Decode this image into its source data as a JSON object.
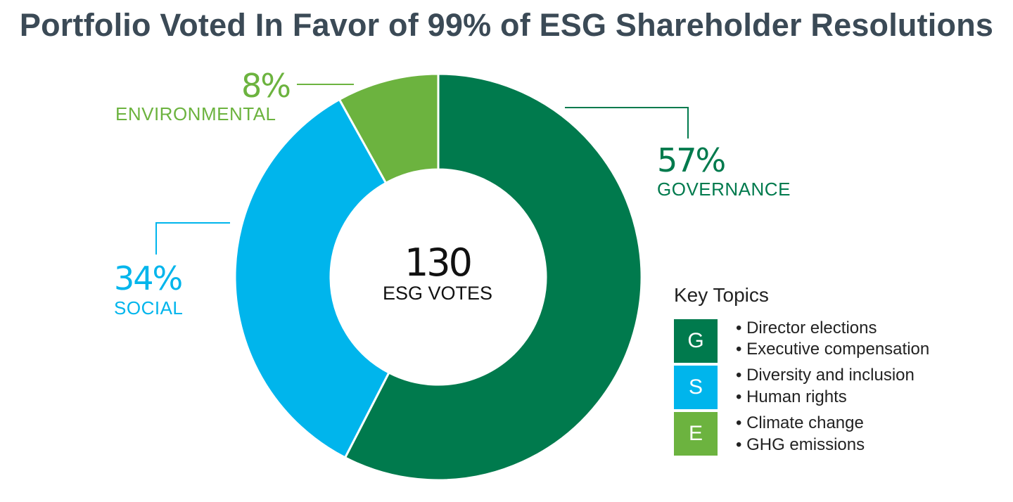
{
  "chart_data": {
    "type": "pie",
    "title": "Portfolio Voted In Favor of 99% of ESG Shareholder Resolutions",
    "center_value": "130",
    "center_label": "ESG VOTES",
    "slices": [
      {
        "label": "GOVERNANCE",
        "value": 57,
        "value_text": "57%",
        "color": "#007a4d"
      },
      {
        "label": "SOCIAL",
        "value": 34,
        "value_text": "34%",
        "color": "#00b5ec"
      },
      {
        "label": "ENVIRONMENTAL",
        "value": 8,
        "value_text": "8%",
        "color": "#6cb33f"
      }
    ]
  },
  "key": {
    "title": "Key Topics",
    "groups": [
      {
        "letter": "G",
        "color": "#007a4d",
        "items": [
          "• Director elections",
          "• Executive compensation"
        ]
      },
      {
        "letter": "S",
        "color": "#00b5ec",
        "items": [
          "• Diversity and inclusion",
          "• Human rights"
        ]
      },
      {
        "letter": "E",
        "color": "#6cb33f",
        "items": [
          "• Climate change",
          "• GHG emissions"
        ]
      }
    ]
  }
}
